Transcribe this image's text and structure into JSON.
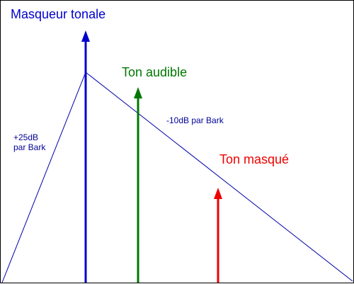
{
  "title": "Masqueur tonale",
  "tones": {
    "masker": {
      "label": "Masqueur tonale",
      "color": "#0000cc"
    },
    "audible": {
      "label": "Ton audible",
      "color": "#007700"
    },
    "masked": {
      "label": "Ton masqué",
      "color": "#ee0000"
    }
  },
  "slopes": {
    "rise_line1": "+25dB",
    "rise_line2": "par Bark",
    "fall": "-10dB par Bark",
    "color": "#000099",
    "curve_color": "#0000aa"
  }
}
